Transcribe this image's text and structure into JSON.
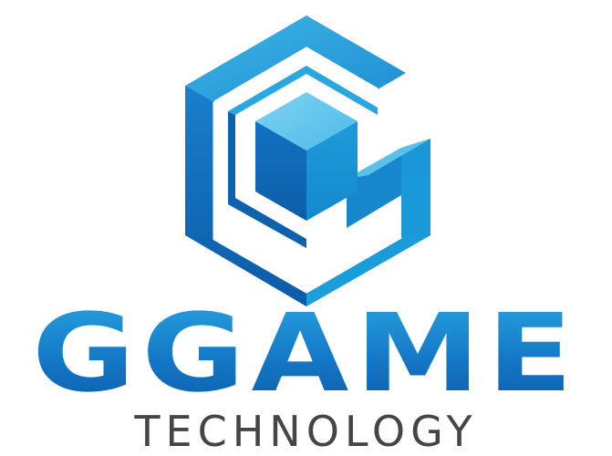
{
  "brand": {
    "name": "GGAME",
    "tagline": "TECHNOLOGY",
    "icon": "hexagon-cube-g-icon"
  },
  "colors": {
    "light_blue": "#5ec6ec",
    "mid_blue": "#1e9bd7",
    "dark_blue": "#0d5fab",
    "deep_blue": "#0b4f9a",
    "text_gray": "#444546"
  }
}
